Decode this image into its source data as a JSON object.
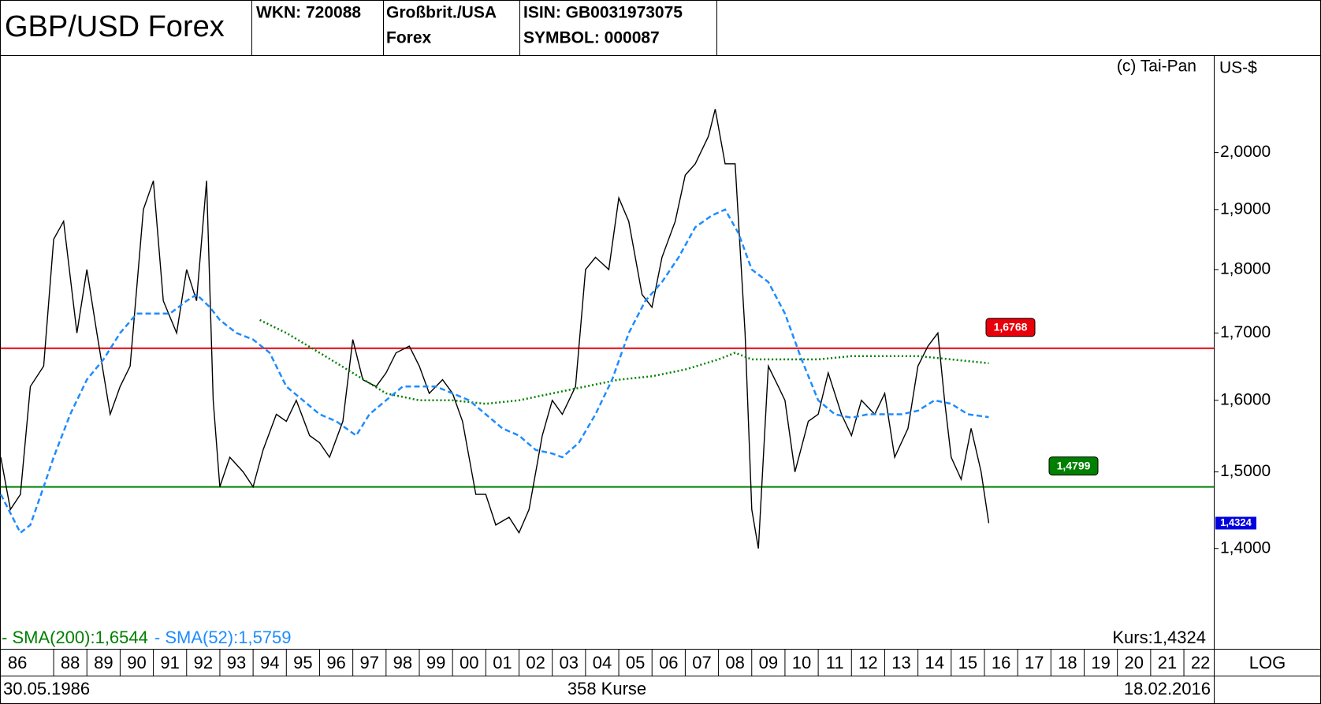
{
  "header": {
    "wkn": "WKN: 720088",
    "name_line1": "Großbrit./USA",
    "name_line2": "Forex",
    "isin": "ISIN: GB0031973075",
    "symbol": "SYMBOL: 000087"
  },
  "chart_data": {
    "type": "line",
    "title": "GBP/USD Forex",
    "copyright": "(c) Tai-Pan",
    "y_unit": "US-$",
    "scale_label": "LOG",
    "log_scale": true,
    "start_date": "30.05.1986",
    "count_label": "358 Kurse",
    "end_date": "18.02.2016",
    "xlim": [
      1986.41,
      2022.9
    ],
    "ylim": [
      1.279,
      2.182
    ],
    "xticks": [
      {
        "value": 1986.41,
        "label": "86"
      },
      {
        "value": 1988,
        "label": "88"
      },
      {
        "value": 1989,
        "label": "89"
      },
      {
        "value": 1990,
        "label": "90"
      },
      {
        "value": 1991,
        "label": "91"
      },
      {
        "value": 1992,
        "label": "92"
      },
      {
        "value": 1993,
        "label": "93"
      },
      {
        "value": 1994,
        "label": "94"
      },
      {
        "value": 1995,
        "label": "95"
      },
      {
        "value": 1996,
        "label": "96"
      },
      {
        "value": 1997,
        "label": "97"
      },
      {
        "value": 1998,
        "label": "98"
      },
      {
        "value": 1999,
        "label": "99"
      },
      {
        "value": 2000,
        "label": "00"
      },
      {
        "value": 2001,
        "label": "01"
      },
      {
        "value": 2002,
        "label": "02"
      },
      {
        "value": 2003,
        "label": "03"
      },
      {
        "value": 2004,
        "label": "04"
      },
      {
        "value": 2005,
        "label": "05"
      },
      {
        "value": 2006,
        "label": "06"
      },
      {
        "value": 2007,
        "label": "07"
      },
      {
        "value": 2008,
        "label": "08"
      },
      {
        "value": 2009,
        "label": "09"
      },
      {
        "value": 2010,
        "label": "10"
      },
      {
        "value": 2011,
        "label": "11"
      },
      {
        "value": 2012,
        "label": "12"
      },
      {
        "value": 2013,
        "label": "13"
      },
      {
        "value": 2014,
        "label": "14"
      },
      {
        "value": 2015,
        "label": "15"
      },
      {
        "value": 2016,
        "label": "16"
      },
      {
        "value": 2017,
        "label": "17"
      },
      {
        "value": 2018,
        "label": "18"
      },
      {
        "value": 2019,
        "label": "19"
      },
      {
        "value": 2020,
        "label": "20"
      },
      {
        "value": 2021,
        "label": "21"
      },
      {
        "value": 2022,
        "label": "22"
      }
    ],
    "yticks": [
      {
        "value": 1.4,
        "label": "1,4000"
      },
      {
        "value": 1.5,
        "label": "1,5000"
      },
      {
        "value": 1.6,
        "label": "1,6000"
      },
      {
        "value": 1.7,
        "label": "1,7000"
      },
      {
        "value": 1.8,
        "label": "1,8000"
      },
      {
        "value": 1.9,
        "label": "1,9000"
      },
      {
        "value": 2,
        "label": "2,0000"
      }
    ],
    "hlines": [
      {
        "value": 1.6768,
        "label": "1,6768",
        "color": "#e8000b"
      },
      {
        "value": 1.4799,
        "label": "1,4799",
        "color": "#008000"
      }
    ],
    "last_price": {
      "value": 1.4324,
      "label": "1,4324",
      "color": "#0000e0"
    },
    "series": [
      {
        "name": "Kurs:1,4324",
        "color": "#000000",
        "x": [
          1986.41,
          1986.7,
          1987.0,
          1987.3,
          1987.7,
          1988.0,
          1988.3,
          1988.7,
          1989.0,
          1989.3,
          1989.7,
          1990.0,
          1990.3,
          1990.7,
          1991.0,
          1991.3,
          1991.7,
          1992.0,
          1992.3,
          1992.6,
          1992.8,
          1993.0,
          1993.3,
          1993.7,
          1994.0,
          1994.3,
          1994.7,
          1995.0,
          1995.3,
          1995.7,
          1996.0,
          1996.3,
          1996.7,
          1997.0,
          1997.3,
          1997.7,
          1998.0,
          1998.3,
          1998.7,
          1999.0,
          1999.3,
          1999.7,
          2000.0,
          2000.3,
          2000.7,
          2001.0,
          2001.3,
          2001.7,
          2002.0,
          2002.3,
          2002.7,
          2003.0,
          2003.3,
          2003.7,
          2004.0,
          2004.3,
          2004.7,
          2005.0,
          2005.3,
          2005.7,
          2006.0,
          2006.3,
          2006.7,
          2007.0,
          2007.3,
          2007.7,
          2007.9,
          2008.2,
          2008.5,
          2008.8,
          2009.0,
          2009.2,
          2009.5,
          2009.8,
          2010.0,
          2010.3,
          2010.7,
          2011.0,
          2011.3,
          2011.7,
          2012.0,
          2012.3,
          2012.7,
          2013.0,
          2013.3,
          2013.7,
          2014.0,
          2014.3,
          2014.6,
          2014.8,
          2015.0,
          2015.3,
          2015.6,
          2015.9,
          2016.13
        ],
        "values": [
          1.52,
          1.45,
          1.47,
          1.62,
          1.65,
          1.85,
          1.88,
          1.7,
          1.8,
          1.7,
          1.58,
          1.62,
          1.65,
          1.9,
          1.95,
          1.75,
          1.7,
          1.8,
          1.75,
          1.95,
          1.6,
          1.48,
          1.52,
          1.5,
          1.48,
          1.53,
          1.58,
          1.57,
          1.6,
          1.55,
          1.54,
          1.52,
          1.57,
          1.69,
          1.63,
          1.62,
          1.64,
          1.67,
          1.68,
          1.65,
          1.61,
          1.63,
          1.61,
          1.57,
          1.47,
          1.47,
          1.43,
          1.44,
          1.42,
          1.45,
          1.55,
          1.6,
          1.58,
          1.62,
          1.8,
          1.82,
          1.8,
          1.92,
          1.88,
          1.76,
          1.74,
          1.82,
          1.88,
          1.96,
          1.98,
          2.03,
          2.08,
          1.98,
          1.98,
          1.7,
          1.45,
          1.4,
          1.65,
          1.62,
          1.6,
          1.5,
          1.57,
          1.58,
          1.64,
          1.58,
          1.55,
          1.6,
          1.58,
          1.61,
          1.52,
          1.56,
          1.65,
          1.68,
          1.7,
          1.6,
          1.52,
          1.49,
          1.56,
          1.5,
          1.4324
        ]
      },
      {
        "name": "- SMA(200):1,6544",
        "color": "#008000",
        "dash": "dot",
        "x": [
          1994.2,
          1995.0,
          1996.0,
          1997.0,
          1998.0,
          1999.0,
          2000.0,
          2001.0,
          2002.0,
          2003.0,
          2004.0,
          2005.0,
          2006.0,
          2007.0,
          2008.0,
          2008.5,
          2009.0,
          2010.0,
          2011.0,
          2012.0,
          2013.0,
          2014.0,
          2015.0,
          2016.13
        ],
        "values": [
          1.72,
          1.7,
          1.67,
          1.64,
          1.61,
          1.6,
          1.6,
          1.595,
          1.6,
          1.61,
          1.62,
          1.63,
          1.635,
          1.645,
          1.66,
          1.67,
          1.66,
          1.66,
          1.66,
          1.665,
          1.665,
          1.665,
          1.66,
          1.6544
        ]
      },
      {
        "name": "- SMA(52):1,5759",
        "color": "#1e8cff",
        "dash": "dash",
        "x": [
          1986.41,
          1987.0,
          1987.3,
          1987.7,
          1988.0,
          1988.5,
          1989.0,
          1989.5,
          1990.0,
          1990.5,
          1991.0,
          1991.5,
          1992.0,
          1992.3,
          1992.7,
          1993.0,
          1993.5,
          1994.0,
          1994.5,
          1995.0,
          1995.5,
          1996.0,
          1996.5,
          1997.1,
          1997.5,
          1998.0,
          1998.5,
          1999.0,
          1999.5,
          2000.0,
          2000.5,
          2001.0,
          2001.5,
          2002.0,
          2002.5,
          2003.0,
          2003.3,
          2003.8,
          2004.3,
          2004.8,
          2005.3,
          2005.8,
          2006.3,
          2006.8,
          2007.3,
          2007.8,
          2008.2,
          2008.6,
          2009.0,
          2009.5,
          2010.0,
          2010.5,
          2011.0,
          2011.5,
          2012.0,
          2012.5,
          2013.0,
          2013.5,
          2014.0,
          2014.5,
          2015.0,
          2015.5,
          2016.13
        ],
        "values": [
          1.47,
          1.42,
          1.43,
          1.48,
          1.52,
          1.58,
          1.63,
          1.66,
          1.7,
          1.73,
          1.73,
          1.73,
          1.75,
          1.76,
          1.74,
          1.72,
          1.7,
          1.69,
          1.67,
          1.62,
          1.6,
          1.58,
          1.57,
          1.55,
          1.58,
          1.6,
          1.62,
          1.62,
          1.62,
          1.61,
          1.6,
          1.58,
          1.56,
          1.55,
          1.53,
          1.525,
          1.52,
          1.54,
          1.58,
          1.63,
          1.7,
          1.75,
          1.78,
          1.82,
          1.87,
          1.89,
          1.9,
          1.86,
          1.8,
          1.78,
          1.73,
          1.66,
          1.6,
          1.58,
          1.575,
          1.58,
          1.58,
          1.58,
          1.585,
          1.6,
          1.595,
          1.58,
          1.5759
        ]
      }
    ]
  }
}
